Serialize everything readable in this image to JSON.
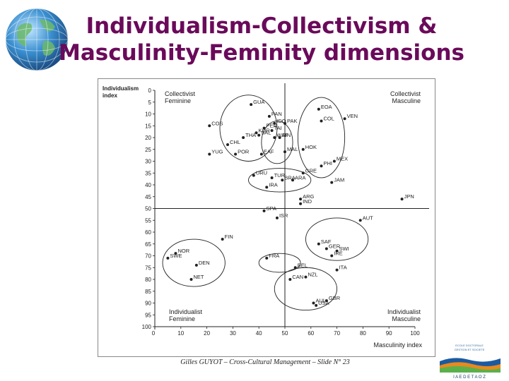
{
  "title_line1": "Individualism-Collectivism &",
  "title_line2": "Masculinity-Feminity dimensions",
  "footer": "Gilles GUYOT – Cross-Cultural Management – Slide N° 23",
  "logo_text": "I A E  D E  T A O Z",
  "colors": {
    "title": "#6a0a5a",
    "ink": "#222222",
    "globe": "#3a8fd0"
  },
  "chart_data": {
    "type": "scatter",
    "xlabel": "Masculinity index",
    "ylabel_line1": "Individualism",
    "ylabel_line2": "index",
    "xlim": [
      0,
      100
    ],
    "ylim": [
      0,
      100
    ],
    "y_reversed": true,
    "x_ticks": [
      10,
      20,
      30,
      40,
      50,
      60,
      70,
      80,
      90,
      100
    ],
    "y_ticks": [
      0,
      5,
      10,
      15,
      20,
      25,
      30,
      35,
      40,
      45,
      50,
      55,
      60,
      65,
      70,
      75,
      80,
      85,
      90,
      95,
      100
    ],
    "divider_x": 50,
    "divider_y": 50,
    "quadrants": [
      {
        "line1": "Collectivist",
        "line2": "Feminine",
        "pos": "top-left"
      },
      {
        "line1": "Collectivist",
        "line2": "Masculine",
        "pos": "top-right"
      },
      {
        "line1": "Individualist",
        "line2": "Feminine",
        "pos": "bottom-left"
      },
      {
        "line1": "Individualist",
        "line2": "Masculine",
        "pos": "bottom-right"
      }
    ],
    "points": [
      {
        "label": "GUA",
        "x": 37,
        "y": 6
      },
      {
        "label": "PAN",
        "x": 44,
        "y": 11
      },
      {
        "label": "EOA",
        "x": 63,
        "y": 8
      },
      {
        "label": "VEN",
        "x": 73,
        "y": 12
      },
      {
        "label": "COL",
        "x": 64,
        "y": 13
      },
      {
        "label": "COS",
        "x": 21,
        "y": 15
      },
      {
        "label": "IDO",
        "x": 46,
        "y": 14
      },
      {
        "label": "PAK",
        "x": 50,
        "y": 14
      },
      {
        "label": "PER",
        "x": 42,
        "y": 16
      },
      {
        "label": "TAI",
        "x": 45,
        "y": 17
      },
      {
        "label": "THA",
        "x": 34,
        "y": 20
      },
      {
        "label": "SIN",
        "x": 48,
        "y": 20
      },
      {
        "label": "SAL",
        "x": 40,
        "y": 19
      },
      {
        "label": "HOK",
        "x": 57,
        "y": 25
      },
      {
        "label": "KOR",
        "x": 39,
        "y": 18
      },
      {
        "label": "WAF",
        "x": 46,
        "y": 20
      },
      {
        "label": "CHL",
        "x": 28,
        "y": 23
      },
      {
        "label": "POR",
        "x": 31,
        "y": 27
      },
      {
        "label": "MEX",
        "x": 69,
        "y": 30
      },
      {
        "label": "YUG",
        "x": 21,
        "y": 27
      },
      {
        "label": "EAF",
        "x": 41,
        "y": 27
      },
      {
        "label": "MAL",
        "x": 50,
        "y": 26
      },
      {
        "label": "PHI",
        "x": 64,
        "y": 32
      },
      {
        "label": "GRE",
        "x": 57,
        "y": 35
      },
      {
        "label": "URU",
        "x": 38,
        "y": 36
      },
      {
        "label": "TUR",
        "x": 45,
        "y": 37
      },
      {
        "label": "ARA",
        "x": 53,
        "y": 38
      },
      {
        "label": "JAM",
        "x": 68,
        "y": 39
      },
      {
        "label": "IRA",
        "x": 43,
        "y": 41
      },
      {
        "label": "BRA",
        "x": 49,
        "y": 38
      },
      {
        "label": "JPN",
        "x": 95,
        "y": 46
      },
      {
        "label": "ARG",
        "x": 56,
        "y": 46
      },
      {
        "label": "IND",
        "x": 56,
        "y": 48
      },
      {
        "label": "SPA",
        "x": 42,
        "y": 51
      },
      {
        "label": "ISR",
        "x": 47,
        "y": 54
      },
      {
        "label": "AUT",
        "x": 79,
        "y": 55
      },
      {
        "label": "FIN",
        "x": 26,
        "y": 63
      },
      {
        "label": "SAF",
        "x": 63,
        "y": 65
      },
      {
        "label": "GER",
        "x": 66,
        "y": 67
      },
      {
        "label": "SWI",
        "x": 70,
        "y": 68
      },
      {
        "label": "IRE",
        "x": 68,
        "y": 70
      },
      {
        "label": "NOR",
        "x": 8,
        "y": 69
      },
      {
        "label": "SWE",
        "x": 5,
        "y": 71
      },
      {
        "label": "FRA",
        "x": 43,
        "y": 71
      },
      {
        "label": "BEL",
        "x": 54,
        "y": 75
      },
      {
        "label": "DEN",
        "x": 16,
        "y": 74
      },
      {
        "label": "ITA",
        "x": 70,
        "y": 76
      },
      {
        "label": "NET",
        "x": 14,
        "y": 80
      },
      {
        "label": "CAN",
        "x": 52,
        "y": 80
      },
      {
        "label": "NZL",
        "x": 58,
        "y": 79
      },
      {
        "label": "AUL",
        "x": 61,
        "y": 90
      },
      {
        "label": "GBR",
        "x": 66,
        "y": 89
      },
      {
        "label": "USA",
        "x": 62,
        "y": 91
      }
    ]
  }
}
